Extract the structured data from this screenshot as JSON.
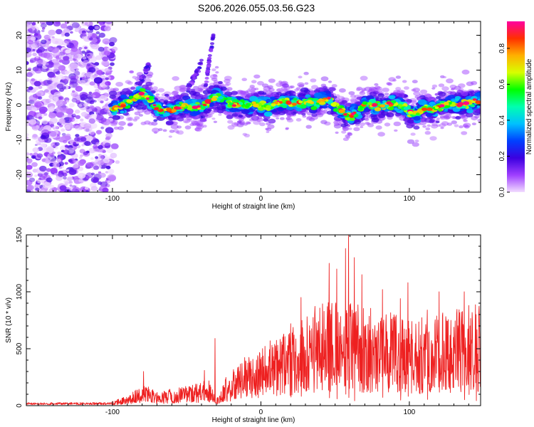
{
  "title": "S206.2026.055.03.56.G23",
  "chart_data": [
    {
      "type": "heatmap",
      "xlabel": "Height of straight line (km)",
      "ylabel": "Frequency (Hz)",
      "xlim": [
        -158,
        148
      ],
      "ylim": [
        -25,
        24
      ],
      "xticks": [
        -100,
        0,
        100
      ],
      "xtick_labels": [
        "-100",
        "0",
        "100"
      ],
      "yticks": [
        -20,
        -10,
        0,
        10,
        20
      ],
      "ytick_labels": [
        "-20",
        "-10",
        "0",
        "10",
        "20"
      ],
      "noise_region_x": [
        -158,
        -100
      ],
      "ridge": {
        "x": [
          -100,
          -95,
          -90,
          -85,
          -80,
          -75,
          -70,
          -65,
          -60,
          -55,
          -50,
          -45,
          -40,
          -35,
          -30,
          -25,
          -20,
          -15,
          -10,
          -5,
          0,
          5,
          10,
          15,
          20,
          25,
          30,
          35,
          40,
          45,
          50,
          55,
          60,
          65,
          70,
          75,
          80,
          85,
          90,
          95,
          100,
          105,
          110,
          115,
          120,
          125,
          130,
          135,
          140,
          145,
          148
        ],
        "y": [
          -1,
          -0.5,
          0.5,
          2,
          3,
          2,
          -1,
          -2,
          -1.5,
          -1,
          0,
          -0.5,
          -1,
          1,
          2.5,
          1.5,
          0.5,
          0,
          0,
          0.5,
          0,
          -0.5,
          0.5,
          1,
          0.5,
          0.5,
          1,
          0.5,
          1,
          2,
          -0.5,
          -2,
          -3.5,
          -2,
          0.5,
          0,
          -0.5,
          0,
          0.5,
          0,
          -2,
          -2.5,
          -1,
          -1.5,
          -0.5,
          0.5,
          0.5,
          0,
          0.5,
          1,
          1
        ]
      },
      "colorbar": {
        "label": "Normalized spectral amplitude",
        "range": [
          0.0,
          0.95
        ],
        "ticks": [
          0.0,
          0.2,
          0.4,
          0.6,
          0.8
        ],
        "tick_labels": [
          "0.0",
          "0.2",
          "0.4",
          "0.6",
          "0.8"
        ],
        "colors": [
          "#f2ddff",
          "#9f3fff",
          "#3b00e0",
          "#0040ff",
          "#00c0ff",
          "#00ffb0",
          "#00ff00",
          "#d8ff00",
          "#ffb000",
          "#ff3000",
          "#ff00a0"
        ]
      }
    },
    {
      "type": "line",
      "xlabel": "Height of straight line (km)",
      "ylabel": "SNR (10 * v/v)",
      "xlim": [
        -158,
        148
      ],
      "ylim": [
        0,
        1500
      ],
      "xticks": [
        -100,
        0,
        100
      ],
      "xtick_labels": [
        "-100",
        "0",
        "100"
      ],
      "yticks": [
        0,
        500,
        1000,
        1500
      ],
      "ytick_labels": [
        "0",
        "500",
        "1000",
        "1500"
      ],
      "series": [
        {
          "name": "SNR",
          "color": "#ee2020",
          "envelope_x": [
            -158,
            -100,
            -90,
            -80,
            -75,
            -70,
            -60,
            -50,
            -40,
            -35,
            -30,
            -25,
            -20,
            -10,
            0,
            10,
            20,
            30,
            40,
            50,
            55,
            60,
            65,
            70,
            80,
            90,
            100,
            110,
            120,
            130,
            140,
            148
          ],
          "envelope_y": [
            20,
            25,
            60,
            120,
            110,
            80,
            100,
            120,
            140,
            150,
            40,
            160,
            200,
            300,
            350,
            400,
            450,
            550,
            600,
            620,
            700,
            650,
            600,
            580,
            560,
            540,
            500,
            520,
            540,
            560,
            580,
            600
          ],
          "spike_x": [
            -79,
            -38,
            -31,
            -2,
            20,
            27,
            46,
            51,
            57,
            59,
            63,
            68,
            82,
            94,
            99,
            112,
            120,
            137,
            140,
            145
          ],
          "spike_y": [
            300,
            310,
            590,
            420,
            720,
            950,
            1250,
            1200,
            1380,
            1500,
            1300,
            1150,
            1020,
            940,
            1080,
            840,
            1000,
            1000,
            880,
            800
          ]
        }
      ]
    }
  ]
}
